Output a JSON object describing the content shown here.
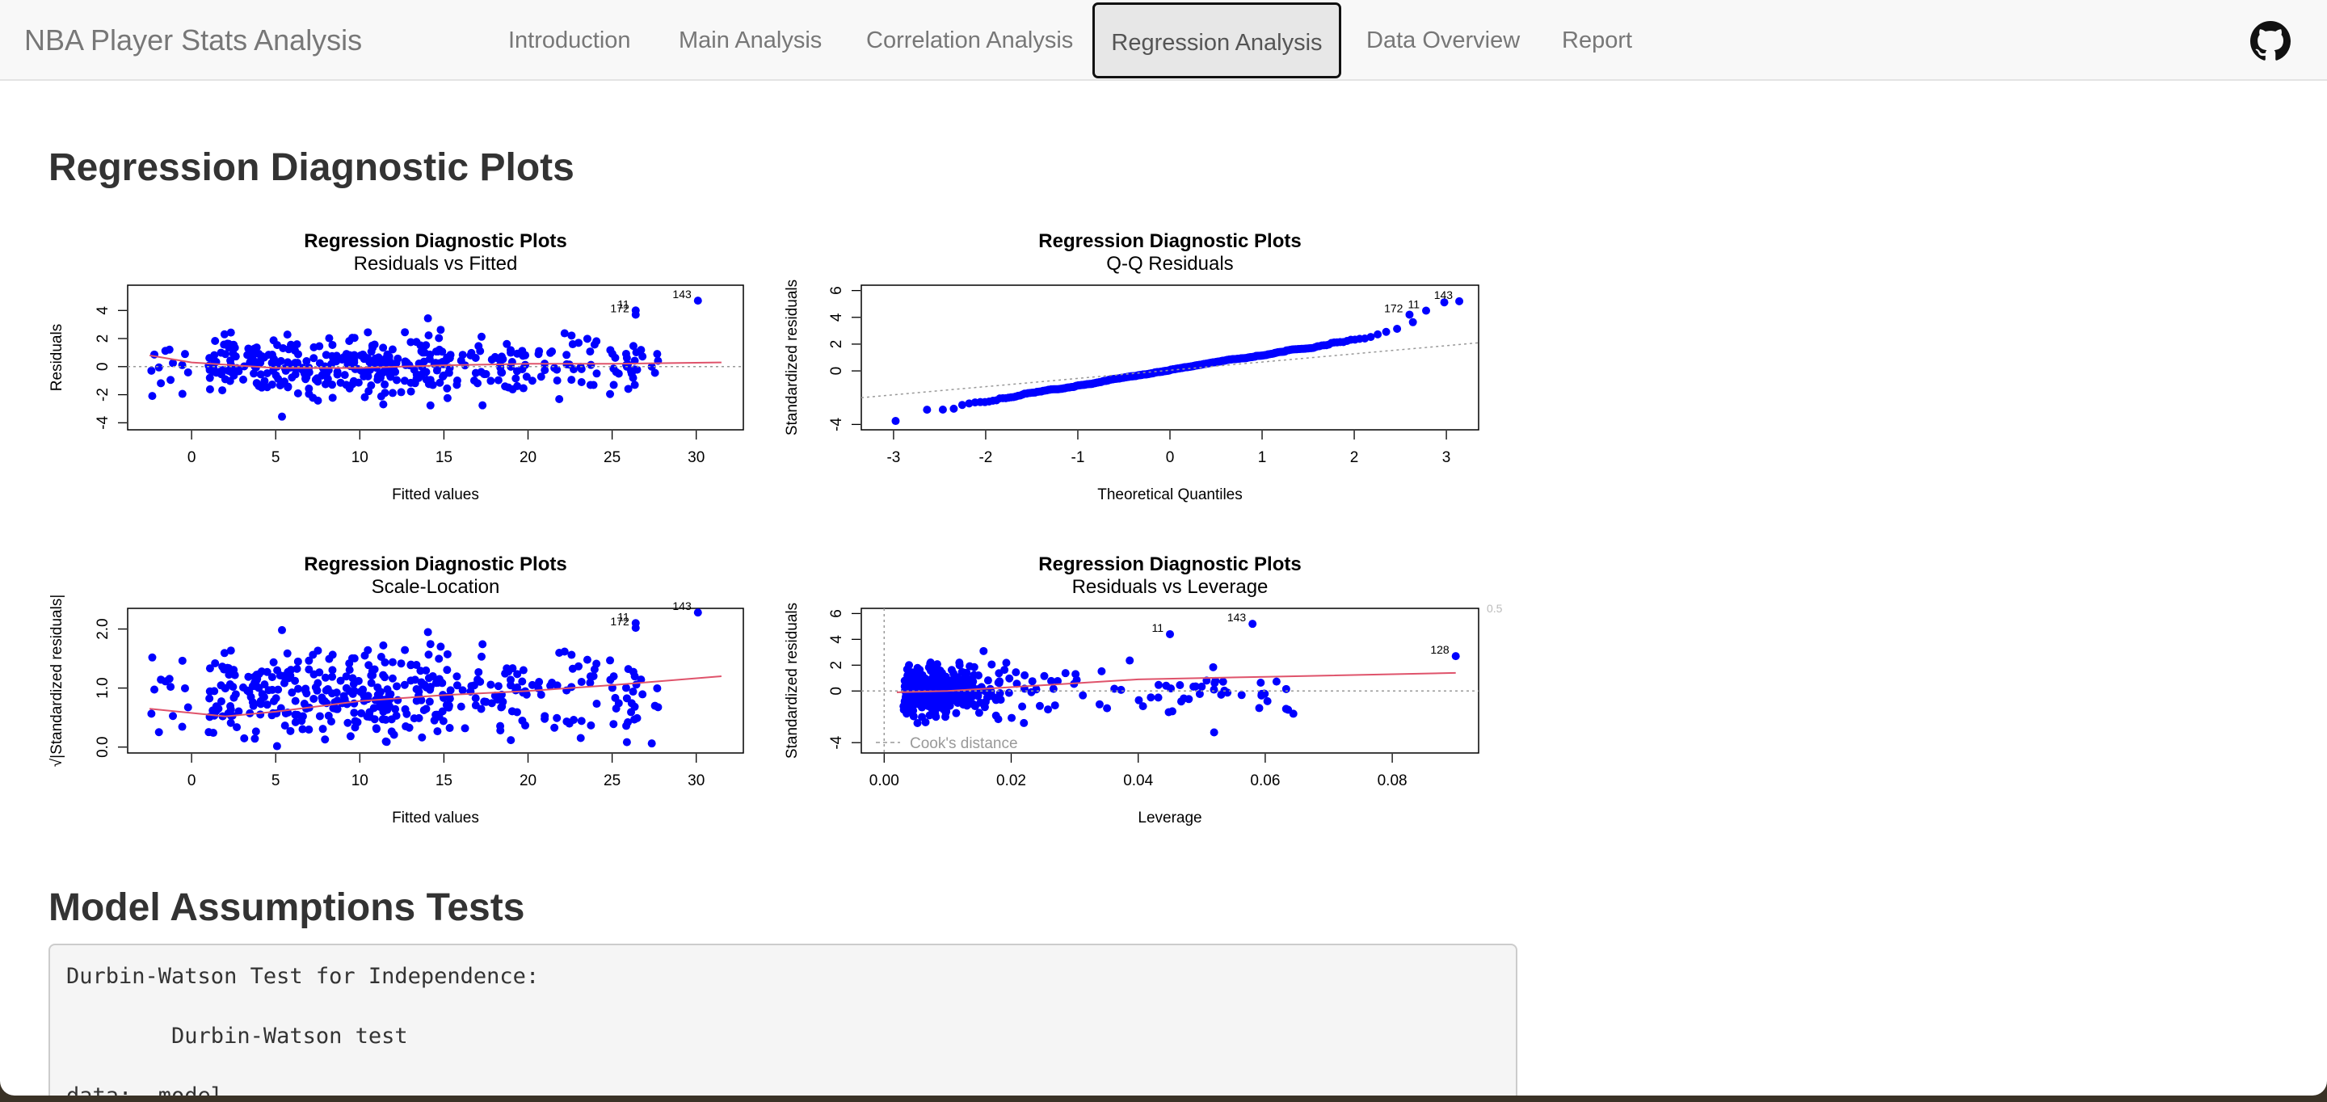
{
  "navbar": {
    "brand": "NBA Player Stats Analysis",
    "tabs": [
      {
        "label": "Introduction",
        "active": false
      },
      {
        "label": "Main Analysis",
        "active": false
      },
      {
        "label": "Correlation Analysis",
        "active": false
      },
      {
        "label": "Regression Analysis",
        "active": true
      },
      {
        "label": "Data Overview",
        "active": false
      },
      {
        "label": "Report",
        "active": false
      }
    ],
    "github_icon": "github-icon"
  },
  "section1": {
    "heading": "Regression Diagnostic Plots"
  },
  "section2": {
    "heading": "Model Assumptions Tests"
  },
  "output": {
    "line1": "Durbin-Watson Test for Independence:",
    "line2": "        Durbin-Watson test",
    "line3": "data:  model"
  },
  "colors": {
    "points": "#0000ff",
    "smooth": "#df536b",
    "ref": "#999999"
  },
  "chart_data": [
    {
      "type": "scatter",
      "title": "Regression Diagnostic Plots",
      "subtitle": "Residuals vs Fitted",
      "xlabel": "Fitted values",
      "ylabel": "Residuals",
      "xlim": [
        -3.8,
        32.8
      ],
      "ylim": [
        -4.5,
        5.8
      ],
      "xticks": [
        0,
        5,
        10,
        15,
        20,
        25,
        30
      ],
      "yticks": [
        -4,
        -2,
        0,
        2,
        4
      ],
      "labeled_points": [
        {
          "label": "143",
          "x": 30.1,
          "y": 4.7
        },
        {
          "label": "11",
          "x": 26.4,
          "y": 4.0
        },
        {
          "label": "172",
          "x": 26.4,
          "y": 3.7
        }
      ],
      "smooth_line": [
        [
          -2.5,
          0.8
        ],
        [
          0,
          0.3
        ],
        [
          5,
          -0.1
        ],
        [
          10,
          -0.1
        ],
        [
          15,
          0.1
        ],
        [
          20,
          0.2
        ],
        [
          25,
          0.2
        ],
        [
          31.5,
          0.3
        ]
      ]
    },
    {
      "type": "scatter",
      "title": "Regression Diagnostic Plots",
      "subtitle": "Q-Q Residuals",
      "xlabel": "Theoretical Quantiles",
      "ylabel": "Standardized residuals",
      "xlim": [
        -3.35,
        3.35
      ],
      "ylim": [
        -4.4,
        6.4
      ],
      "xticks": [
        -3,
        -2,
        -1,
        0,
        1,
        2,
        3
      ],
      "yticks": [
        -4,
        0,
        2,
        4,
        6
      ],
      "labeled_points": [
        {
          "label": "143",
          "x": 3.14,
          "y": 5.2
        },
        {
          "label": "11",
          "x": 2.78,
          "y": 4.5
        },
        {
          "label": "172",
          "x": 2.6,
          "y": 4.2
        }
      ],
      "reference_line": [
        [
          -3.35,
          -2.0
        ],
        [
          3.35,
          2.1
        ]
      ]
    },
    {
      "type": "scatter",
      "title": "Regression Diagnostic Plots",
      "subtitle": "Scale-Location",
      "xlabel": "Fitted values",
      "ylabel": "√|Standardized residuals|",
      "xlim": [
        -3.8,
        32.8
      ],
      "ylim": [
        -0.1,
        2.35
      ],
      "xticks": [
        0,
        5,
        10,
        15,
        20,
        25,
        30
      ],
      "yticks": [
        0.0,
        1.0,
        2.0
      ],
      "labeled_points": [
        {
          "label": "143",
          "x": 30.1,
          "y": 2.28
        },
        {
          "label": "11",
          "x": 26.4,
          "y": 2.1
        },
        {
          "label": "172",
          "x": 26.4,
          "y": 2.02
        }
      ],
      "smooth_line": [
        [
          -2.5,
          0.65
        ],
        [
          2,
          0.52
        ],
        [
          5,
          0.6
        ],
        [
          10,
          0.78
        ],
        [
          15,
          0.88
        ],
        [
          20,
          0.95
        ],
        [
          25,
          1.05
        ],
        [
          31.5,
          1.2
        ]
      ]
    },
    {
      "type": "scatter",
      "title": "Regression Diagnostic Plots",
      "subtitle": "Residuals vs Leverage",
      "xlabel": "Leverage",
      "ylabel": "Standardized residuals",
      "xlim": [
        -0.0036,
        0.0936
      ],
      "ylim": [
        -4.8,
        6.4
      ],
      "xticks": [
        0.0,
        0.02,
        0.04,
        0.06,
        0.08
      ],
      "yticks": [
        -4,
        0,
        2,
        4,
        6
      ],
      "labeled_points": [
        {
          "label": "143",
          "x": 0.058,
          "y": 5.2
        },
        {
          "label": "11",
          "x": 0.045,
          "y": 4.4
        },
        {
          "label": "128",
          "x": 0.09,
          "y": 2.7
        }
      ],
      "contour_label": "0.5",
      "legend": "Cook's distance",
      "smooth_line": [
        [
          0.002,
          -0.1
        ],
        [
          0.01,
          0.0
        ],
        [
          0.02,
          0.3
        ],
        [
          0.03,
          0.6
        ],
        [
          0.04,
          0.9
        ],
        [
          0.06,
          1.1
        ],
        [
          0.09,
          1.4
        ]
      ]
    }
  ]
}
